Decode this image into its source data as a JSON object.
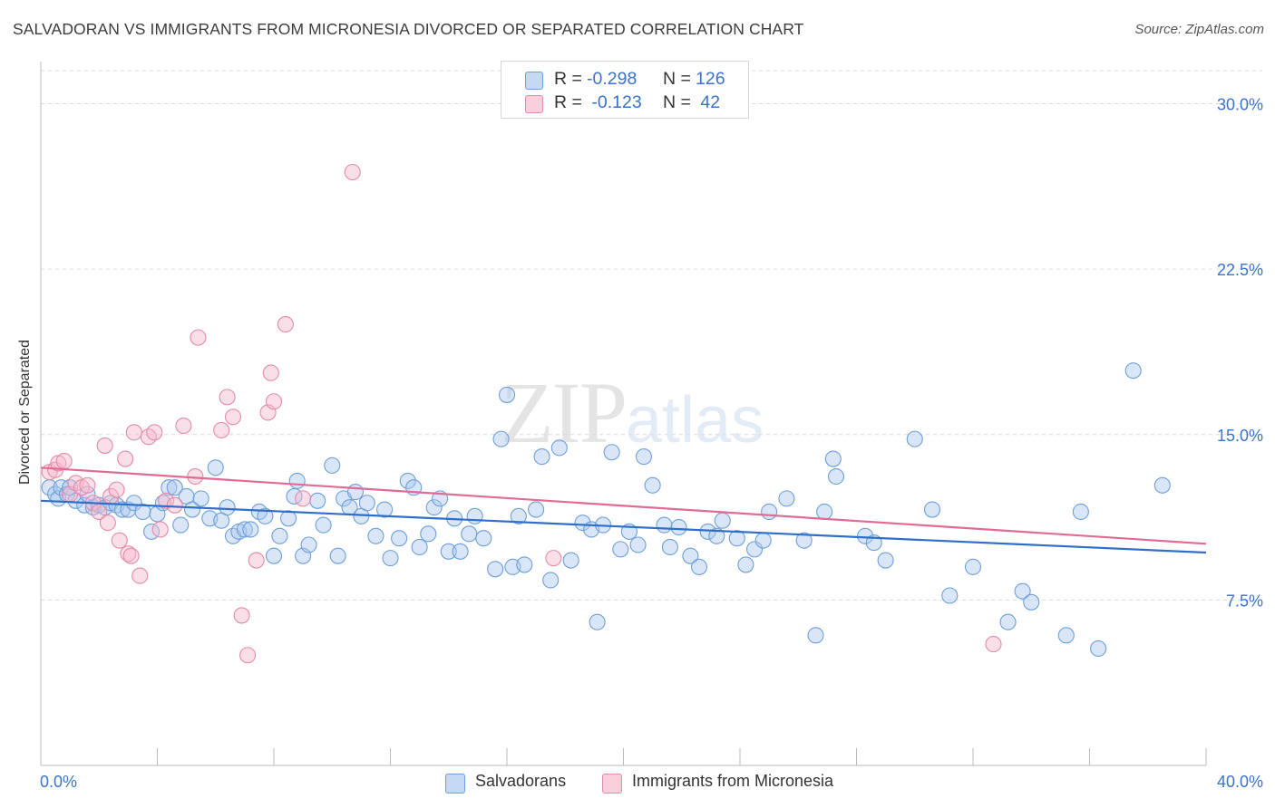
{
  "title": "SALVADORAN VS IMMIGRANTS FROM MICRONESIA DIVORCED OR SEPARATED CORRELATION CHART",
  "source": "Source: ZipAtlas.com",
  "watermark": {
    "zip": "ZIP",
    "atlas": "atlas"
  },
  "legend_top": [
    {
      "r_label": "R =",
      "r_value": "-0.298",
      "n_label": "N =",
      "n_value": "126"
    },
    {
      "r_label": "R =",
      "r_value": " -0.123",
      "n_label": "N =",
      "n_value": " 42"
    }
  ],
  "legend_bottom": [
    "Salvadorans",
    "Immigrants from Micronesia"
  ],
  "colors": {
    "blue_fill": "#a9c8ee",
    "blue_stroke": "#6f9fd8",
    "blue_line": "#2f6fc9",
    "pink_fill": "#f6b8cb",
    "pink_stroke": "#e58aa8",
    "pink_line": "#e06b94",
    "axis_label": "#3a73c9",
    "grid": "#dcdcdc"
  },
  "chart_data": {
    "type": "scatter",
    "title": "SALVADORAN VS IMMIGRANTS FROM MICRONESIA DIVORCED OR SEPARATED CORRELATION CHART",
    "xlabel": "",
    "ylabel": "Divorced or Separated",
    "xlim": [
      0,
      40
    ],
    "ylim": [
      0,
      31.5
    ],
    "x_tick_labels": [
      "0.0%",
      "40.0%"
    ],
    "y_ticks": [
      7.5,
      15.0,
      22.5,
      30.0
    ],
    "y_tick_labels": [
      "7.5%",
      "15.0%",
      "22.5%",
      "30.0%"
    ],
    "grid": true,
    "legend_position": "top-center",
    "series": [
      {
        "name": "Salvadorans",
        "color": "#a9c8ee",
        "trend": {
          "x": [
            0,
            40
          ],
          "y": [
            12.0,
            9.65
          ]
        },
        "points": [
          [
            0.3,
            12.6
          ],
          [
            0.5,
            12.3
          ],
          [
            0.6,
            12.1
          ],
          [
            0.7,
            12.6
          ],
          [
            0.9,
            12.3
          ],
          [
            1.0,
            12.6
          ],
          [
            1.2,
            12.0
          ],
          [
            1.5,
            11.8
          ],
          [
            1.6,
            12.3
          ],
          [
            1.8,
            11.7
          ],
          [
            2.0,
            11.8
          ],
          [
            2.2,
            11.7
          ],
          [
            2.4,
            11.9
          ],
          [
            2.6,
            11.8
          ],
          [
            2.8,
            11.6
          ],
          [
            3.0,
            11.6
          ],
          [
            3.2,
            11.9
          ],
          [
            3.5,
            11.5
          ],
          [
            3.8,
            10.6
          ],
          [
            4.0,
            11.4
          ],
          [
            4.2,
            11.9
          ],
          [
            4.4,
            12.6
          ],
          [
            4.6,
            12.6
          ],
          [
            4.8,
            10.9
          ],
          [
            5.0,
            12.2
          ],
          [
            5.2,
            11.6
          ],
          [
            5.5,
            12.1
          ],
          [
            5.8,
            11.2
          ],
          [
            6.0,
            13.5
          ],
          [
            6.2,
            11.1
          ],
          [
            6.4,
            11.7
          ],
          [
            6.6,
            10.4
          ],
          [
            6.8,
            10.6
          ],
          [
            7.0,
            10.7
          ],
          [
            7.2,
            10.7
          ],
          [
            7.5,
            11.5
          ],
          [
            7.7,
            11.3
          ],
          [
            8.0,
            9.5
          ],
          [
            8.2,
            10.4
          ],
          [
            8.5,
            11.2
          ],
          [
            8.7,
            12.2
          ],
          [
            8.8,
            12.9
          ],
          [
            9.0,
            9.5
          ],
          [
            9.2,
            10.0
          ],
          [
            9.5,
            12.0
          ],
          [
            9.7,
            10.9
          ],
          [
            10.0,
            13.6
          ],
          [
            10.2,
            9.5
          ],
          [
            10.4,
            12.1
          ],
          [
            10.6,
            11.7
          ],
          [
            10.8,
            12.4
          ],
          [
            11.0,
            11.3
          ],
          [
            11.2,
            11.9
          ],
          [
            11.5,
            10.4
          ],
          [
            11.8,
            11.6
          ],
          [
            12.0,
            9.4
          ],
          [
            12.3,
            10.3
          ],
          [
            12.6,
            12.9
          ],
          [
            12.8,
            12.6
          ],
          [
            13.0,
            9.9
          ],
          [
            13.3,
            10.5
          ],
          [
            13.5,
            11.7
          ],
          [
            13.7,
            12.1
          ],
          [
            14.0,
            9.7
          ],
          [
            14.2,
            11.2
          ],
          [
            14.4,
            9.7
          ],
          [
            14.7,
            10.5
          ],
          [
            14.9,
            11.3
          ],
          [
            15.2,
            10.3
          ],
          [
            15.6,
            8.9
          ],
          [
            15.8,
            14.8
          ],
          [
            16.0,
            16.8
          ],
          [
            16.2,
            9.0
          ],
          [
            16.4,
            11.3
          ],
          [
            16.6,
            9.1
          ],
          [
            17.0,
            11.6
          ],
          [
            17.2,
            14.0
          ],
          [
            17.5,
            8.4
          ],
          [
            17.8,
            14.4
          ],
          [
            18.2,
            9.3
          ],
          [
            18.6,
            11.0
          ],
          [
            18.9,
            10.7
          ],
          [
            19.1,
            6.5
          ],
          [
            19.3,
            10.9
          ],
          [
            19.6,
            14.2
          ],
          [
            19.9,
            9.8
          ],
          [
            20.2,
            10.6
          ],
          [
            20.5,
            10.0
          ],
          [
            20.7,
            14.0
          ],
          [
            21.0,
            12.7
          ],
          [
            21.4,
            10.9
          ],
          [
            21.6,
            9.9
          ],
          [
            21.9,
            10.8
          ],
          [
            22.3,
            9.5
          ],
          [
            22.6,
            9.0
          ],
          [
            22.9,
            10.6
          ],
          [
            23.2,
            10.4
          ],
          [
            23.4,
            11.1
          ],
          [
            23.9,
            10.3
          ],
          [
            24.2,
            9.1
          ],
          [
            24.5,
            9.8
          ],
          [
            24.8,
            10.2
          ],
          [
            25.0,
            11.5
          ],
          [
            25.6,
            12.1
          ],
          [
            26.2,
            10.2
          ],
          [
            26.6,
            5.9
          ],
          [
            26.9,
            11.5
          ],
          [
            27.2,
            13.9
          ],
          [
            27.3,
            13.1
          ],
          [
            28.3,
            10.4
          ],
          [
            28.6,
            10.1
          ],
          [
            29.0,
            9.3
          ],
          [
            30.0,
            14.8
          ],
          [
            30.6,
            11.6
          ],
          [
            31.2,
            7.7
          ],
          [
            32.0,
            9.0
          ],
          [
            33.2,
            6.5
          ],
          [
            33.7,
            7.9
          ],
          [
            34.0,
            7.4
          ],
          [
            35.2,
            5.9
          ],
          [
            35.7,
            11.5
          ],
          [
            36.3,
            5.3
          ],
          [
            37.5,
            17.9
          ],
          [
            38.5,
            12.7
          ]
        ]
      },
      {
        "name": "Immigrants from Micronesia",
        "color": "#f6b8cb",
        "trend": {
          "x": [
            0,
            40
          ],
          "y": [
            13.5,
            10.05
          ]
        },
        "points": [
          [
            0.3,
            13.3
          ],
          [
            0.5,
            13.4
          ],
          [
            0.6,
            13.7
          ],
          [
            0.8,
            13.8
          ],
          [
            1.0,
            12.3
          ],
          [
            1.2,
            12.8
          ],
          [
            1.4,
            12.6
          ],
          [
            1.6,
            12.7
          ],
          [
            1.8,
            11.9
          ],
          [
            2.0,
            11.5
          ],
          [
            2.2,
            14.5
          ],
          [
            2.4,
            12.2
          ],
          [
            2.6,
            12.5
          ],
          [
            2.7,
            10.2
          ],
          [
            2.9,
            13.9
          ],
          [
            3.0,
            9.6
          ],
          [
            3.2,
            15.1
          ],
          [
            3.4,
            8.6
          ],
          [
            3.7,
            14.9
          ],
          [
            3.9,
            15.1
          ],
          [
            4.1,
            10.7
          ],
          [
            4.3,
            12.0
          ],
          [
            4.6,
            11.8
          ],
          [
            4.9,
            15.4
          ],
          [
            5.3,
            13.1
          ],
          [
            5.4,
            19.4
          ],
          [
            6.2,
            15.2
          ],
          [
            6.4,
            16.7
          ],
          [
            6.6,
            15.8
          ],
          [
            6.9,
            6.8
          ],
          [
            7.1,
            5.0
          ],
          [
            7.4,
            9.3
          ],
          [
            7.8,
            16.0
          ],
          [
            7.9,
            17.8
          ],
          [
            8.0,
            16.5
          ],
          [
            8.4,
            20.0
          ],
          [
            9.0,
            12.1
          ],
          [
            10.7,
            26.9
          ],
          [
            2.3,
            11.0
          ],
          [
            3.1,
            9.5
          ],
          [
            17.6,
            9.4
          ],
          [
            32.7,
            5.5
          ]
        ]
      }
    ]
  }
}
